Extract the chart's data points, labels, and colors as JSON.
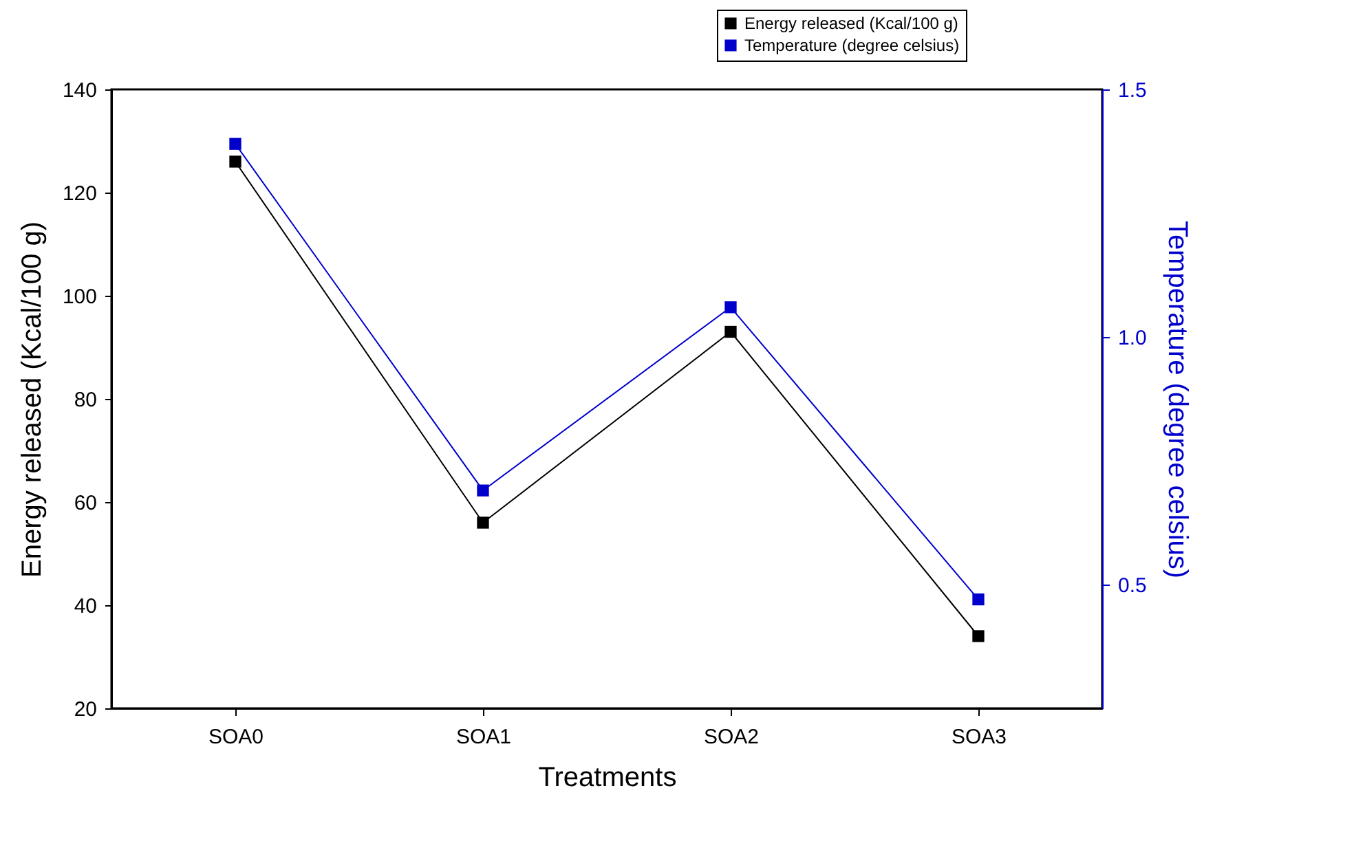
{
  "chart_data": {
    "type": "line",
    "xlabel": "Treatments",
    "ylabel": "Energy released (Kcal/100 g)",
    "y2label": "Temperature (degree celsius)",
    "categories": [
      "SOA0",
      "SOA1",
      "SOA2",
      "SOA3"
    ],
    "series": [
      {
        "name": "Energy released (Kcal/100 g)",
        "color": "#000000",
        "values": [
          126,
          56,
          93,
          34
        ]
      },
      {
        "name": "Temperature (degree celsius)",
        "color": "#0000cc",
        "axis": "y2",
        "values": [
          1.39,
          0.69,
          1.06,
          0.47
        ]
      }
    ],
    "ylim": [
      20,
      140
    ],
    "yticks": [
      20,
      40,
      60,
      80,
      100,
      120,
      140
    ],
    "y2lim": [
      0.25,
      1.5
    ],
    "y2ticks": [
      0.5,
      {
        "value": 1,
        "label": "1.0"
      },
      1.5
    ],
    "marker": "square",
    "legend": "top right",
    "grid": false
  }
}
